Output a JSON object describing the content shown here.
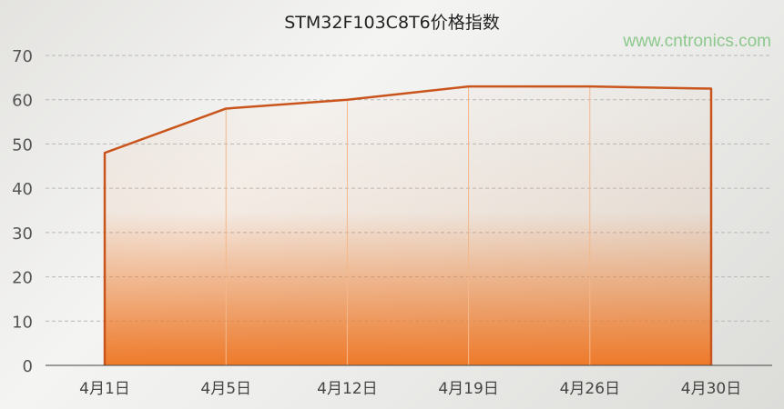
{
  "chart_data": {
    "type": "area",
    "title": "STM32F103C8T6价格指数",
    "categories": [
      "4月1日",
      "4月5日",
      "4月12日",
      "4月19日",
      "4月26日",
      "4月30日"
    ],
    "values": [
      48,
      58,
      60,
      63,
      63,
      62.5
    ],
    "yticks": [
      0,
      10,
      20,
      30,
      40,
      50,
      60,
      70
    ],
    "ylim": [
      0,
      70
    ],
    "xlabel": "",
    "ylabel": "",
    "grid": true,
    "colors": {
      "line": "#c9541c",
      "fill": "#ee7a2a"
    }
  },
  "watermark": "www.cntronics.com"
}
